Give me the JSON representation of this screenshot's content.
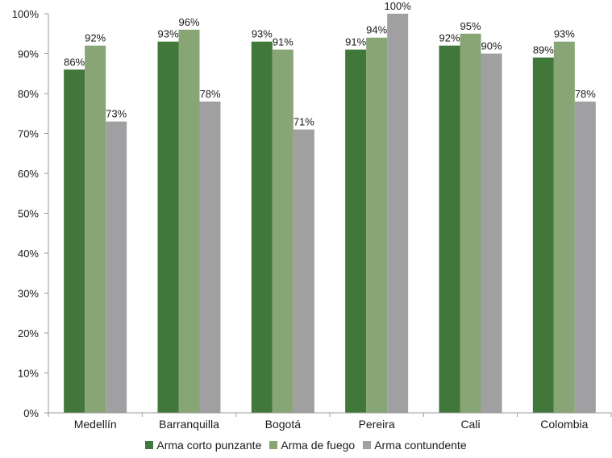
{
  "chart_data": {
    "type": "bar",
    "categories": [
      "Medellín",
      "Barranquilla",
      "Bogotá",
      "Pereira",
      "Cali",
      "Colombia"
    ],
    "series": [
      {
        "name": "Arma corto punzante",
        "color": "#41773a",
        "values": [
          86,
          93,
          93,
          91,
          92,
          89
        ],
        "labels": [
          "86%",
          "93%",
          "93%",
          "91%",
          "92%",
          "89%"
        ]
      },
      {
        "name": "Arma de fuego",
        "color": "#87a575",
        "values": [
          92,
          96,
          91,
          94,
          95,
          93
        ],
        "labels": [
          "92%",
          "96%",
          "91%",
          "94%",
          "95%",
          "93%"
        ]
      },
      {
        "name": "Arma contundente",
        "color": "#a0a0a3",
        "values": [
          73,
          78,
          71,
          100,
          90,
          78
        ],
        "labels": [
          "73%",
          "78%",
          "71%",
          "100%",
          "90%",
          "78%"
        ]
      }
    ],
    "y_ticks": [
      "0%",
      "10%",
      "20%",
      "30%",
      "40%",
      "50%",
      "60%",
      "70%",
      "80%",
      "90%",
      "100%"
    ],
    "ylim": [
      0,
      100
    ],
    "grid": false,
    "legend_position": "bottom"
  }
}
